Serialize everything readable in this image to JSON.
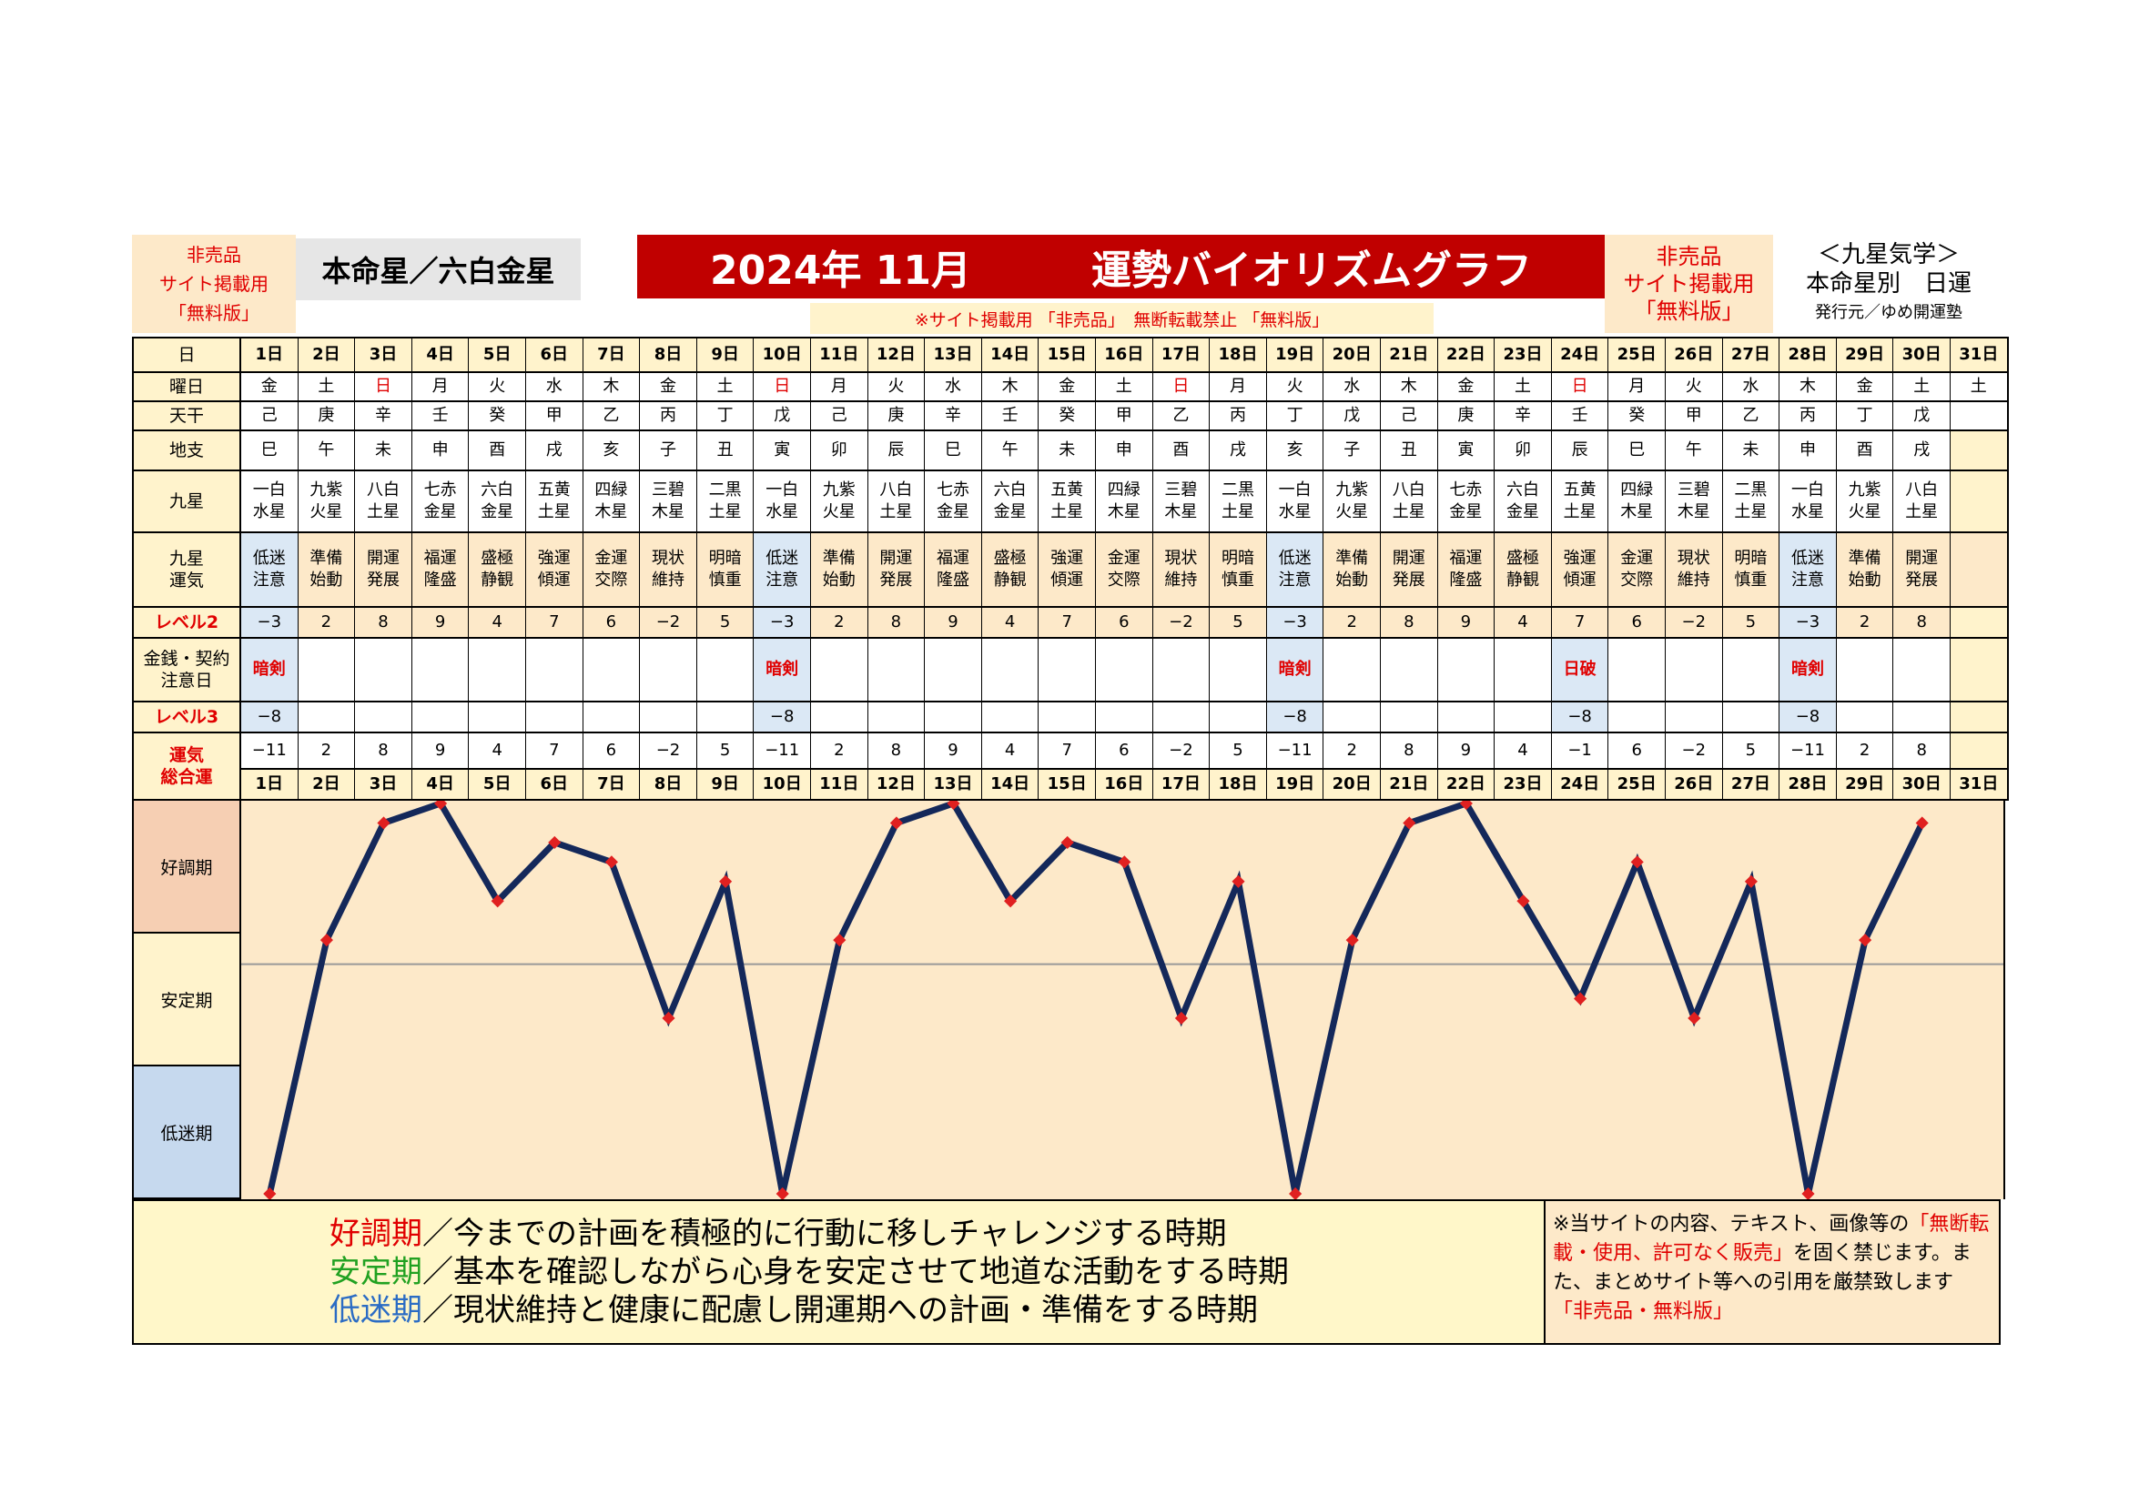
{
  "header": {
    "left_notice": [
      "非売品",
      "サイト掲載用",
      "「無料版」"
    ],
    "honmei": "本命星／六白金星",
    "title": "2024年 11月　　　運勢バイオリズムグラフ",
    "notice": "※サイト掲載用 「非売品」　無断転載禁止 「無料版」",
    "right_notice": [
      "非売品",
      "サイト掲載用",
      "「無料版」"
    ],
    "right_info": [
      "＜九星気学＞",
      "本命星別　日運",
      "発行元／ゆめ開運塾"
    ]
  },
  "row_labels": {
    "day": "日",
    "weekday": "曜日",
    "tenkan": "天干",
    "chishi": "地支",
    "kyusei": "九星",
    "kyusei_unki": "九星\n運気",
    "level2": "レベル2",
    "money": "金銭・契約\n注意日",
    "level3": "レベル3",
    "total": "運気\n総合運"
  },
  "days": [
    "1日",
    "2日",
    "3日",
    "4日",
    "5日",
    "6日",
    "7日",
    "8日",
    "9日",
    "10日",
    "11日",
    "12日",
    "13日",
    "14日",
    "15日",
    "16日",
    "17日",
    "18日",
    "19日",
    "20日",
    "21日",
    "22日",
    "23日",
    "24日",
    "25日",
    "26日",
    "27日",
    "28日",
    "29日",
    "30日",
    "31日"
  ],
  "weekdays": [
    "金",
    "土",
    "日",
    "月",
    "火",
    "水",
    "木",
    "金",
    "土",
    "日",
    "月",
    "火",
    "水",
    "木",
    "金",
    "土",
    "日",
    "月",
    "火",
    "水",
    "木",
    "金",
    "土",
    "日",
    "月",
    "火",
    "水",
    "木",
    "金",
    "土",
    "土"
  ],
  "tenkan": [
    "己",
    "庚",
    "辛",
    "壬",
    "癸",
    "甲",
    "乙",
    "丙",
    "丁",
    "戊",
    "己",
    "庚",
    "辛",
    "壬",
    "癸",
    "甲",
    "乙",
    "丙",
    "丁",
    "戊",
    "己",
    "庚",
    "辛",
    "壬",
    "癸",
    "甲",
    "乙",
    "丙",
    "丁",
    "戊",
    ""
  ],
  "chishi": [
    "巳",
    "午",
    "未",
    "申",
    "酉",
    "戌",
    "亥",
    "子",
    "丑",
    "寅",
    "卯",
    "辰",
    "巳",
    "午",
    "未",
    "申",
    "酉",
    "戌",
    "亥",
    "子",
    "丑",
    "寅",
    "卯",
    "辰",
    "巳",
    "午",
    "未",
    "申",
    "酉",
    "戌",
    ""
  ],
  "kyusei": [
    "一白\n水星",
    "九紫\n火星",
    "八白\n土星",
    "七赤\n金星",
    "六白\n金星",
    "五黄\n土星",
    "四緑\n木星",
    "三碧\n木星",
    "二黒\n土星",
    "一白\n水星",
    "九紫\n火星",
    "八白\n土星",
    "七赤\n金星",
    "六白\n金星",
    "五黄\n土星",
    "四緑\n木星",
    "三碧\n木星",
    "二黒\n土星",
    "一白\n水星",
    "九紫\n火星",
    "八白\n土星",
    "七赤\n金星",
    "六白\n金星",
    "五黄\n土星",
    "四緑\n木星",
    "三碧\n木星",
    "二黒\n土星",
    "一白\n水星",
    "九紫\n火星",
    "八白\n土星",
    ""
  ],
  "kyusei_unki": [
    "低迷\n注意",
    "準備\n始動",
    "開運\n発展",
    "福運\n隆盛",
    "盛極\n静観",
    "強運\n傾運",
    "金運\n交際",
    "現状\n維持",
    "明暗\n慎重",
    "低迷\n注意",
    "準備\n始動",
    "開運\n発展",
    "福運\n隆盛",
    "盛極\n静観",
    "強運\n傾運",
    "金運\n交際",
    "現状\n維持",
    "明暗\n慎重",
    "低迷\n注意",
    "準備\n始動",
    "開運\n発展",
    "福運\n隆盛",
    "盛極\n静観",
    "強運\n傾運",
    "金運\n交際",
    "現状\n維持",
    "明暗\n慎重",
    "低迷\n注意",
    "準備\n始動",
    "開運\n発展",
    ""
  ],
  "level2": [
    "−3",
    "2",
    "8",
    "9",
    "4",
    "7",
    "6",
    "−2",
    "5",
    "−3",
    "2",
    "8",
    "9",
    "4",
    "7",
    "6",
    "−2",
    "5",
    "−3",
    "2",
    "8",
    "9",
    "4",
    "7",
    "6",
    "−2",
    "5",
    "−3",
    "2",
    "8",
    ""
  ],
  "money_caution": [
    "暗剣",
    "",
    "",
    "",
    "",
    "",
    "",
    "",
    "",
    "暗剣",
    "",
    "",
    "",
    "",
    "",
    "",
    "",
    "",
    "暗剣",
    "",
    "",
    "",
    "",
    "日破",
    "",
    "",
    "",
    "暗剣",
    "",
    "",
    ""
  ],
  "level3": [
    "−8",
    "",
    "",
    "",
    "",
    "",
    "",
    "",
    "",
    "−8",
    "",
    "",
    "",
    "",
    "",
    "",
    "",
    "",
    "−8",
    "",
    "",
    "",
    "",
    "−8",
    "",
    "",
    "",
    "−8",
    "",
    "",
    ""
  ],
  "total": [
    "−11",
    "2",
    "8",
    "9",
    "4",
    "7",
    "6",
    "−2",
    "5",
    "−11",
    "2",
    "8",
    "9",
    "4",
    "7",
    "6",
    "−2",
    "5",
    "−11",
    "2",
    "8",
    "9",
    "4",
    "−1",
    "6",
    "−2",
    "5",
    "−11",
    "2",
    "8",
    ""
  ],
  "chart_labels": [
    "好調期",
    "安定期",
    "低迷期"
  ],
  "chart_data": {
    "type": "line",
    "x": [
      "1日",
      "2日",
      "3日",
      "4日",
      "5日",
      "6日",
      "7日",
      "8日",
      "9日",
      "10日",
      "11日",
      "12日",
      "13日",
      "14日",
      "15日",
      "16日",
      "17日",
      "18日",
      "19日",
      "20日",
      "21日",
      "22日",
      "23日",
      "24日",
      "25日",
      "26日",
      "27日",
      "28日",
      "29日",
      "30日"
    ],
    "values": [
      -11,
      2,
      8,
      9,
      4,
      7,
      6,
      -2,
      5,
      -11,
      2,
      8,
      9,
      4,
      7,
      6,
      -2,
      5,
      -11,
      2,
      8,
      9,
      4,
      -1,
      6,
      -2,
      5,
      -11,
      2,
      8
    ],
    "ylim": [
      -11,
      9
    ],
    "bands": [
      "好調期",
      "安定期",
      "低迷期"
    ],
    "colors": {
      "line": "#14285a",
      "marker": "#e02020",
      "midline": "#999999",
      "plot_bg": "#fde9c9"
    }
  },
  "legend": {
    "good_label": "好調期",
    "good_text": "／今までの計画を積極的に行動に移しチャレンジする時期",
    "stable_label": "安定期",
    "stable_text": "／基本を確認しながら心身を安定させて地道な活動をする時期",
    "low_label": "低迷期",
    "low_text": "／現状維持と健康に配慮し開運期への計画・準備をする時期"
  },
  "copyright": {
    "line1": "※当サイトの内容、テキスト、画像等の",
    "red1": "「無断転載・使用、許可なく販売」",
    "line2": "を固く禁じます。また、まとめサイト等への引用を厳禁致します",
    "red2": "「非売品・無料版」"
  }
}
